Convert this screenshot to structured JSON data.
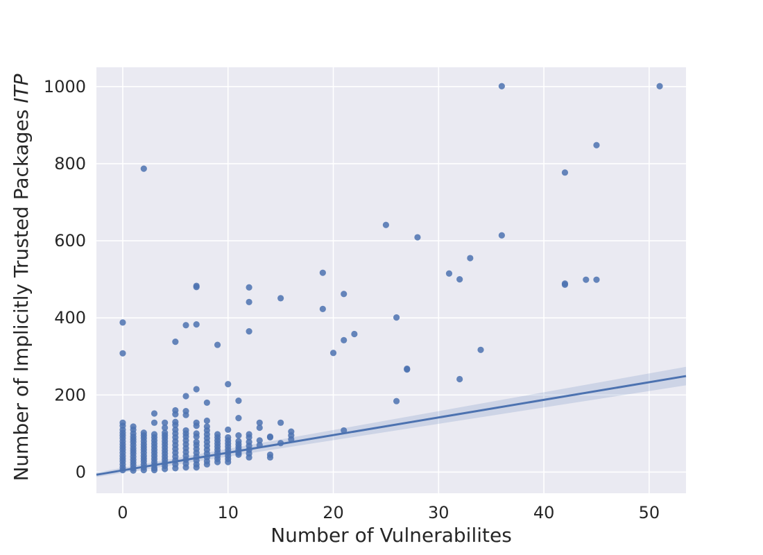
{
  "chart_data": {
    "type": "scatter",
    "title": "",
    "xlabel": "Number of Vulnerabilites",
    "ylabel": "Number of Implicitly Trusted Packages ",
    "ylabel_italic": "ITP",
    "xlim": [
      -2.5,
      53.5
    ],
    "ylim": [
      -55,
      1050
    ],
    "xticks": [
      0,
      10,
      20,
      30,
      40,
      50
    ],
    "yticks": [
      0,
      200,
      400,
      600,
      800,
      1000
    ],
    "grid": true,
    "background_color": "#eaeaf2",
    "point_color": "#4c72b0",
    "line_color": "#4c72b0",
    "regression": {
      "x_start": -2.5,
      "y_start": -7,
      "x_end": 53.5,
      "y_end": 249,
      "ci_halfwidth_start": 6,
      "ci_halfwidth_end": 24
    },
    "points": [
      {
        "x": 0,
        "y": 388
      },
      {
        "x": 0,
        "y": 308
      },
      {
        "x": 0,
        "y": 128
      },
      {
        "x": 0,
        "y": 120
      },
      {
        "x": 0,
        "y": 110
      },
      {
        "x": 0,
        "y": 102
      },
      {
        "x": 0,
        "y": 95
      },
      {
        "x": 0,
        "y": 88
      },
      {
        "x": 0,
        "y": 80
      },
      {
        "x": 0,
        "y": 72
      },
      {
        "x": 0,
        "y": 65
      },
      {
        "x": 0,
        "y": 58
      },
      {
        "x": 0,
        "y": 50
      },
      {
        "x": 0,
        "y": 42
      },
      {
        "x": 0,
        "y": 35
      },
      {
        "x": 0,
        "y": 28
      },
      {
        "x": 0,
        "y": 20
      },
      {
        "x": 0,
        "y": 12
      },
      {
        "x": 0,
        "y": 5
      },
      {
        "x": 1,
        "y": 118
      },
      {
        "x": 1,
        "y": 110
      },
      {
        "x": 1,
        "y": 100
      },
      {
        "x": 1,
        "y": 92
      },
      {
        "x": 1,
        "y": 85
      },
      {
        "x": 1,
        "y": 78
      },
      {
        "x": 1,
        "y": 70
      },
      {
        "x": 1,
        "y": 62
      },
      {
        "x": 1,
        "y": 55
      },
      {
        "x": 1,
        "y": 48
      },
      {
        "x": 1,
        "y": 40
      },
      {
        "x": 1,
        "y": 32
      },
      {
        "x": 1,
        "y": 25
      },
      {
        "x": 1,
        "y": 18
      },
      {
        "x": 1,
        "y": 10
      },
      {
        "x": 1,
        "y": 4
      },
      {
        "x": 2,
        "y": 787
      },
      {
        "x": 2,
        "y": 102
      },
      {
        "x": 2,
        "y": 95
      },
      {
        "x": 2,
        "y": 88
      },
      {
        "x": 2,
        "y": 80
      },
      {
        "x": 2,
        "y": 72
      },
      {
        "x": 2,
        "y": 65
      },
      {
        "x": 2,
        "y": 58
      },
      {
        "x": 2,
        "y": 50
      },
      {
        "x": 2,
        "y": 42
      },
      {
        "x": 2,
        "y": 35
      },
      {
        "x": 2,
        "y": 28
      },
      {
        "x": 2,
        "y": 20
      },
      {
        "x": 2,
        "y": 12
      },
      {
        "x": 2,
        "y": 5
      },
      {
        "x": 3,
        "y": 152
      },
      {
        "x": 3,
        "y": 128
      },
      {
        "x": 3,
        "y": 98
      },
      {
        "x": 3,
        "y": 90
      },
      {
        "x": 3,
        "y": 82
      },
      {
        "x": 3,
        "y": 74
      },
      {
        "x": 3,
        "y": 66
      },
      {
        "x": 3,
        "y": 58
      },
      {
        "x": 3,
        "y": 50
      },
      {
        "x": 3,
        "y": 42
      },
      {
        "x": 3,
        "y": 34
      },
      {
        "x": 3,
        "y": 26
      },
      {
        "x": 3,
        "y": 18
      },
      {
        "x": 3,
        "y": 10
      },
      {
        "x": 3,
        "y": 5
      },
      {
        "x": 4,
        "y": 128
      },
      {
        "x": 4,
        "y": 115
      },
      {
        "x": 4,
        "y": 102
      },
      {
        "x": 4,
        "y": 95
      },
      {
        "x": 4,
        "y": 88
      },
      {
        "x": 4,
        "y": 80
      },
      {
        "x": 4,
        "y": 72
      },
      {
        "x": 4,
        "y": 64
      },
      {
        "x": 4,
        "y": 56
      },
      {
        "x": 4,
        "y": 48
      },
      {
        "x": 4,
        "y": 40
      },
      {
        "x": 4,
        "y": 32
      },
      {
        "x": 4,
        "y": 24
      },
      {
        "x": 4,
        "y": 16
      },
      {
        "x": 4,
        "y": 8
      },
      {
        "x": 5,
        "y": 338
      },
      {
        "x": 5,
        "y": 160
      },
      {
        "x": 5,
        "y": 150
      },
      {
        "x": 5,
        "y": 130
      },
      {
        "x": 5,
        "y": 122
      },
      {
        "x": 5,
        "y": 110
      },
      {
        "x": 5,
        "y": 100
      },
      {
        "x": 5,
        "y": 90
      },
      {
        "x": 5,
        "y": 80
      },
      {
        "x": 5,
        "y": 70
      },
      {
        "x": 5,
        "y": 60
      },
      {
        "x": 5,
        "y": 50
      },
      {
        "x": 5,
        "y": 40
      },
      {
        "x": 5,
        "y": 30
      },
      {
        "x": 5,
        "y": 20
      },
      {
        "x": 5,
        "y": 10
      },
      {
        "x": 6,
        "y": 381
      },
      {
        "x": 6,
        "y": 197
      },
      {
        "x": 6,
        "y": 158
      },
      {
        "x": 6,
        "y": 148
      },
      {
        "x": 6,
        "y": 108
      },
      {
        "x": 6,
        "y": 100
      },
      {
        "x": 6,
        "y": 92
      },
      {
        "x": 6,
        "y": 82
      },
      {
        "x": 6,
        "y": 72
      },
      {
        "x": 6,
        "y": 62
      },
      {
        "x": 6,
        "y": 52
      },
      {
        "x": 6,
        "y": 42
      },
      {
        "x": 6,
        "y": 32
      },
      {
        "x": 6,
        "y": 22
      },
      {
        "x": 6,
        "y": 12
      },
      {
        "x": 7,
        "y": 483
      },
      {
        "x": 7,
        "y": 480
      },
      {
        "x": 7,
        "y": 383
      },
      {
        "x": 7,
        "y": 215
      },
      {
        "x": 7,
        "y": 128
      },
      {
        "x": 7,
        "y": 120
      },
      {
        "x": 7,
        "y": 100
      },
      {
        "x": 7,
        "y": 92
      },
      {
        "x": 7,
        "y": 78
      },
      {
        "x": 7,
        "y": 70
      },
      {
        "x": 7,
        "y": 60
      },
      {
        "x": 7,
        "y": 50
      },
      {
        "x": 7,
        "y": 40
      },
      {
        "x": 7,
        "y": 30
      },
      {
        "x": 7,
        "y": 20
      },
      {
        "x": 7,
        "y": 12
      },
      {
        "x": 8,
        "y": 180
      },
      {
        "x": 8,
        "y": 133
      },
      {
        "x": 8,
        "y": 118
      },
      {
        "x": 8,
        "y": 108
      },
      {
        "x": 8,
        "y": 98
      },
      {
        "x": 8,
        "y": 88
      },
      {
        "x": 8,
        "y": 78
      },
      {
        "x": 8,
        "y": 68
      },
      {
        "x": 8,
        "y": 58
      },
      {
        "x": 8,
        "y": 48
      },
      {
        "x": 8,
        "y": 38
      },
      {
        "x": 8,
        "y": 28
      },
      {
        "x": 8,
        "y": 20
      },
      {
        "x": 9,
        "y": 330
      },
      {
        "x": 9,
        "y": 98
      },
      {
        "x": 9,
        "y": 90
      },
      {
        "x": 9,
        "y": 82
      },
      {
        "x": 9,
        "y": 74
      },
      {
        "x": 9,
        "y": 66
      },
      {
        "x": 9,
        "y": 58
      },
      {
        "x": 9,
        "y": 50
      },
      {
        "x": 9,
        "y": 42
      },
      {
        "x": 9,
        "y": 34
      },
      {
        "x": 9,
        "y": 26
      },
      {
        "x": 10,
        "y": 228
      },
      {
        "x": 10,
        "y": 110
      },
      {
        "x": 10,
        "y": 90
      },
      {
        "x": 10,
        "y": 82
      },
      {
        "x": 10,
        "y": 74
      },
      {
        "x": 10,
        "y": 66
      },
      {
        "x": 10,
        "y": 58
      },
      {
        "x": 10,
        "y": 50
      },
      {
        "x": 10,
        "y": 42
      },
      {
        "x": 10,
        "y": 34
      },
      {
        "x": 10,
        "y": 26
      },
      {
        "x": 11,
        "y": 185
      },
      {
        "x": 11,
        "y": 140
      },
      {
        "x": 11,
        "y": 95
      },
      {
        "x": 11,
        "y": 80
      },
      {
        "x": 11,
        "y": 72
      },
      {
        "x": 11,
        "y": 65
      },
      {
        "x": 11,
        "y": 58
      },
      {
        "x": 11,
        "y": 50
      },
      {
        "x": 11,
        "y": 45
      },
      {
        "x": 12,
        "y": 479
      },
      {
        "x": 12,
        "y": 441
      },
      {
        "x": 12,
        "y": 365
      },
      {
        "x": 12,
        "y": 98
      },
      {
        "x": 12,
        "y": 90
      },
      {
        "x": 12,
        "y": 78
      },
      {
        "x": 12,
        "y": 68
      },
      {
        "x": 12,
        "y": 58
      },
      {
        "x": 12,
        "y": 48
      },
      {
        "x": 12,
        "y": 38
      },
      {
        "x": 13,
        "y": 128
      },
      {
        "x": 13,
        "y": 115
      },
      {
        "x": 13,
        "y": 82
      },
      {
        "x": 13,
        "y": 70
      },
      {
        "x": 14,
        "y": 92
      },
      {
        "x": 14,
        "y": 90
      },
      {
        "x": 14,
        "y": 45
      },
      {
        "x": 14,
        "y": 38
      },
      {
        "x": 15,
        "y": 451
      },
      {
        "x": 15,
        "y": 128
      },
      {
        "x": 15,
        "y": 75
      },
      {
        "x": 16,
        "y": 105
      },
      {
        "x": 16,
        "y": 95
      },
      {
        "x": 16,
        "y": 85
      },
      {
        "x": 19,
        "y": 517
      },
      {
        "x": 19,
        "y": 423
      },
      {
        "x": 20,
        "y": 309
      },
      {
        "x": 21,
        "y": 462
      },
      {
        "x": 21,
        "y": 342
      },
      {
        "x": 21,
        "y": 108
      },
      {
        "x": 22,
        "y": 358
      },
      {
        "x": 25,
        "y": 641
      },
      {
        "x": 26,
        "y": 401
      },
      {
        "x": 26,
        "y": 184
      },
      {
        "x": 27,
        "y": 268
      },
      {
        "x": 27,
        "y": 266
      },
      {
        "x": 28,
        "y": 609
      },
      {
        "x": 31,
        "y": 515
      },
      {
        "x": 32,
        "y": 500
      },
      {
        "x": 32,
        "y": 241
      },
      {
        "x": 33,
        "y": 555
      },
      {
        "x": 34,
        "y": 317
      },
      {
        "x": 36,
        "y": 1001
      },
      {
        "x": 36,
        "y": 614
      },
      {
        "x": 42,
        "y": 777
      },
      {
        "x": 42,
        "y": 489
      },
      {
        "x": 42,
        "y": 486
      },
      {
        "x": 44,
        "y": 499
      },
      {
        "x": 45,
        "y": 848
      },
      {
        "x": 45,
        "y": 499
      },
      {
        "x": 51,
        "y": 1001
      }
    ]
  }
}
